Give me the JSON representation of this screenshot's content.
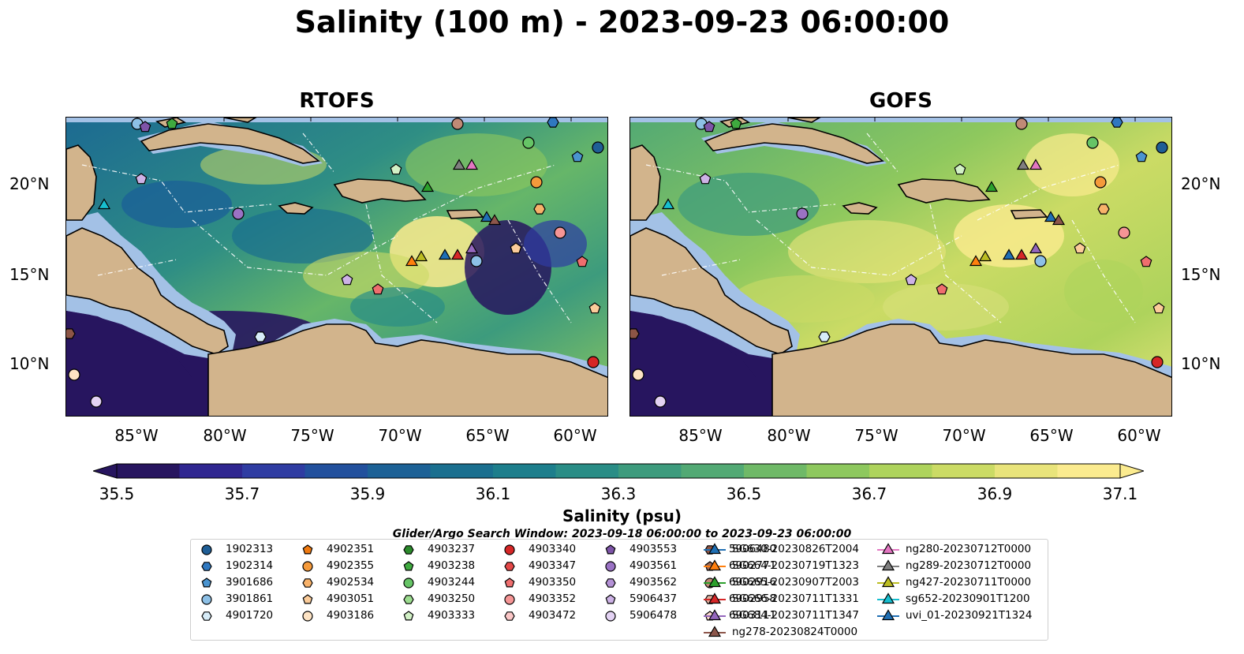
{
  "title": "Salinity (100 m) - 2023-09-23 06:00:00",
  "panels": [
    {
      "title": "RTOFS"
    },
    {
      "title": "GOFS"
    }
  ],
  "axes": {
    "lon_ticks": [
      "85°W",
      "80°W",
      "75°W",
      "70°W",
      "65°W",
      "60°W"
    ],
    "lat_ticks": [
      "20°N",
      "15°N",
      "10°N"
    ]
  },
  "colorbar": {
    "label": "Salinity (psu)",
    "ticks": [
      "35.5",
      "35.7",
      "35.9",
      "36.1",
      "36.3",
      "36.5",
      "36.7",
      "36.9",
      "37.1"
    ],
    "colors": [
      "#27155f",
      "#2f2690",
      "#2f3ca2",
      "#22509d",
      "#1c6196",
      "#1a6f8f",
      "#1d7e8c",
      "#2a8d86",
      "#3d9b7d",
      "#52a974",
      "#6fb967",
      "#8ec85e",
      "#aed35c",
      "#cbdb65",
      "#e9e47b",
      "#fbeb8f"
    ]
  },
  "search_window": "Glider/Argo Search Window: 2023-09-18 06:00:00 to 2023-09-23 06:00:00",
  "legend": [
    {
      "label": "1902313",
      "marker": "circle",
      "color": "#1f5e96"
    },
    {
      "label": "1902314",
      "marker": "hexagon",
      "color": "#2f78c0"
    },
    {
      "label": "3901686",
      "marker": "pentagon",
      "color": "#4a94d0"
    },
    {
      "label": "3901861",
      "marker": "circle",
      "color": "#8dc0e6"
    },
    {
      "label": "4901720",
      "marker": "hexagon",
      "color": "#d7ecf8"
    },
    {
      "label": "4902351",
      "marker": "pentagon",
      "color": "#f07a10"
    },
    {
      "label": "4902355",
      "marker": "circle",
      "color": "#f59a3b"
    },
    {
      "label": "4902534",
      "marker": "hexagon",
      "color": "#f8b26a"
    },
    {
      "label": "4903051",
      "marker": "pentagon",
      "color": "#fbcc9a"
    },
    {
      "label": "4903186",
      "marker": "circle",
      "color": "#fde3c4"
    },
    {
      "label": "4903237",
      "marker": "hexagon",
      "color": "#2b8a2b"
    },
    {
      "label": "4903238",
      "marker": "pentagon",
      "color": "#3faa3f"
    },
    {
      "label": "4903244",
      "marker": "circle",
      "color": "#66c466"
    },
    {
      "label": "4903250",
      "marker": "hexagon",
      "color": "#9cdc8f"
    },
    {
      "label": "4903333",
      "marker": "pentagon",
      "color": "#d2f1c6"
    },
    {
      "label": "4903340",
      "marker": "circle",
      "color": "#d62626"
    },
    {
      "label": "4903347",
      "marker": "hexagon",
      "color": "#e44848"
    },
    {
      "label": "4903350",
      "marker": "pentagon",
      "color": "#ef6e6e"
    },
    {
      "label": "4903352",
      "marker": "circle",
      "color": "#f59595"
    },
    {
      "label": "4903472",
      "marker": "hexagon",
      "color": "#fbc7c7"
    },
    {
      "label": "4903553",
      "marker": "pentagon",
      "color": "#7e54a8"
    },
    {
      "label": "4903561",
      "marker": "circle",
      "color": "#9a72c4"
    },
    {
      "label": "4903562",
      "marker": "hexagon",
      "color": "#b491d6"
    },
    {
      "label": "5906437",
      "marker": "pentagon",
      "color": "#cdb2e6"
    },
    {
      "label": "5906478",
      "marker": "circle",
      "color": "#e3d2f3"
    },
    {
      "label": "5906480",
      "marker": "hexagon",
      "color": "#8c5546"
    },
    {
      "label": "6902771",
      "marker": "pentagon",
      "color": "#a06a58"
    },
    {
      "label": "6902916",
      "marker": "circle",
      "color": "#c08a76"
    },
    {
      "label": "6902958",
      "marker": "hexagon",
      "color": "#e0b09e"
    },
    {
      "label": "6903111",
      "marker": "pentagon",
      "color": "#fbd9cd"
    },
    {
      "label": "SG630-20230826T2004",
      "marker": "triangle",
      "color": "#1f6fb4"
    },
    {
      "label": "SG664-20230719T1323",
      "marker": "triangle",
      "color": "#ff7f0e"
    },
    {
      "label": "SG665-20230907T2003",
      "marker": "triangle",
      "color": "#2ca02c"
    },
    {
      "label": "SG666-20230711T1331",
      "marker": "triangle",
      "color": "#d62728"
    },
    {
      "label": "SG684-20230711T1347",
      "marker": "triangle",
      "color": "#9467bd"
    },
    {
      "label": "ng278-20230824T0000",
      "marker": "triangle",
      "color": "#8c564b"
    },
    {
      "label": "ng280-20230712T0000",
      "marker": "triangle",
      "color": "#e377c2"
    },
    {
      "label": "ng289-20230712T0000",
      "marker": "triangle",
      "color": "#7f7f7f"
    },
    {
      "label": "ng427-20230711T0000",
      "marker": "triangle",
      "color": "#bcbd22"
    },
    {
      "label": "sg652-20230901T1200",
      "marker": "triangle",
      "color": "#17becf"
    },
    {
      "label": "uvi_01-20230921T1324",
      "marker": "triangle",
      "color": "#1f6fb4"
    }
  ],
  "map_colors": {
    "land": "#d2b48c",
    "shelf": "#a3c1e6",
    "low_salinity": "#27155f"
  }
}
